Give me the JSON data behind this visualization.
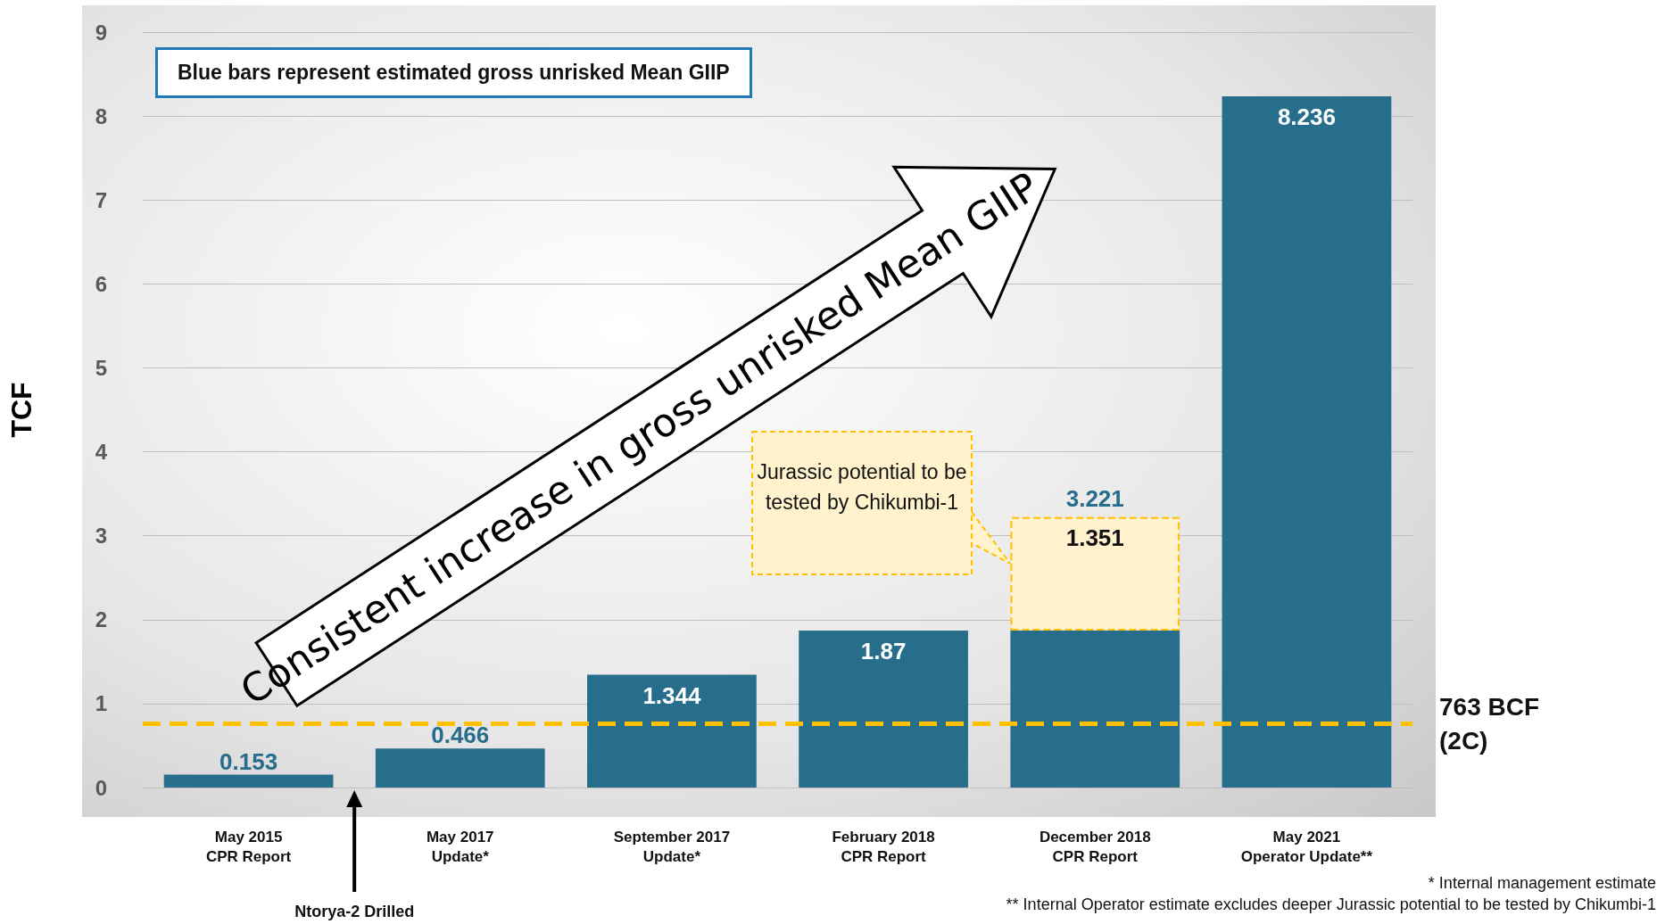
{
  "chart_data": {
    "type": "bar",
    "stacked": true,
    "ylabel": "TCF",
    "categories": [
      "May 2015\nCPR Report",
      "May 2017\nUpdate*",
      "September 2017\nUpdate*",
      "February 2018\nCPR Report",
      "December 2018\nCPR Report",
      "May 2021\nOperator Update**"
    ],
    "series": [
      {
        "color": "#276d8c",
        "values": [
          0.153,
          0.466,
          1.344,
          1.87,
          1.87,
          8.236
        ],
        "value_labels": [
          "0.153",
          "0.466",
          "1.344",
          "1.87",
          null,
          "8.236"
        ]
      },
      {
        "color": "#fff2cc",
        "values": [
          null,
          null,
          null,
          null,
          1.351,
          null
        ],
        "value_labels": [
          null,
          null,
          null,
          null,
          "1.351",
          null
        ]
      }
    ],
    "totals": [
      null,
      null,
      null,
      null,
      "3.221",
      null
    ],
    "ylim": [
      0,
      9
    ],
    "yticks": [
      0,
      1,
      2,
      3,
      4,
      5,
      6,
      7,
      8,
      9
    ],
    "grid": "y",
    "ref_lines": [
      {
        "axis": "y",
        "value": 0.763,
        "label": "763 BCF (2C)",
        "color": "#ffc000",
        "line_style": "dashed"
      }
    ],
    "annotations": [
      "Blue bars represent estimated gross unrisked Mean GIIP",
      "Consistent increase in gross unrisked Mean GIIP",
      "Jurassic potential to be tested by Chikumbi-1",
      "Ntorya-2 Drilled",
      "* Internal management estimate",
      "** Internal Operator estimate excludes deeper Jurassic potential to be tested by Chikumbi-1"
    ]
  }
}
